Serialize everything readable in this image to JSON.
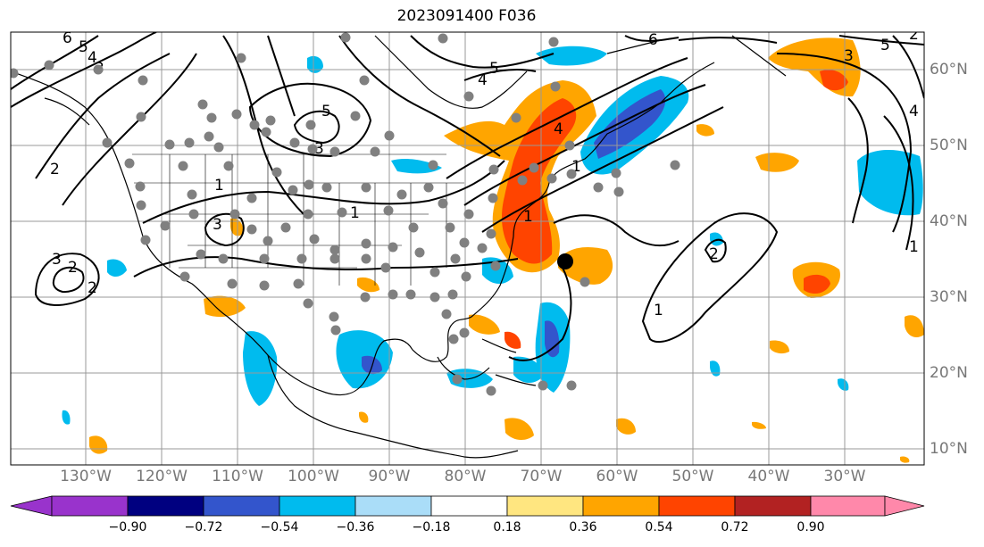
{
  "title": "2023091400 F036",
  "map_data": {
    "type": "map",
    "projection": "PlateCarree",
    "extent": {
      "lon": [
        -140,
        -22
      ],
      "lat": [
        8,
        65
      ]
    },
    "lon_labels": [
      "130°W",
      "120°W",
      "110°W",
      "100°W",
      "90°W",
      "80°W",
      "70°W",
      "60°W",
      "50°W",
      "40°W",
      "30°W"
    ],
    "lat_labels": [
      "60°N",
      "50°N",
      "40°N",
      "30°N",
      "20°N",
      "10°N"
    ],
    "contour_labels": [
      "6",
      "5",
      "4",
      "3",
      "2",
      "1",
      "2",
      "3",
      "2",
      "3",
      "1",
      "1",
      "5",
      "3",
      "4",
      "1",
      "5",
      "6",
      "4",
      "5",
      "3",
      "4",
      "1",
      "1",
      "2",
      "2"
    ],
    "storm_center": {
      "lon": -67,
      "lat": 35
    }
  },
  "colorbar": {
    "colors": [
      "#9933cc",
      "#000080",
      "#3355cc",
      "#00bbee",
      "#aaddf8",
      "#ffffff",
      "#ffe680",
      "#ffa500",
      "#ff4400",
      "#b22222",
      "#ff88aa"
    ],
    "tick_labels": [
      "−0.90",
      "−0.72",
      "−0.54",
      "−0.36",
      "−0.18",
      "0.18",
      "0.36",
      "0.54",
      "0.72",
      "0.90"
    ]
  }
}
